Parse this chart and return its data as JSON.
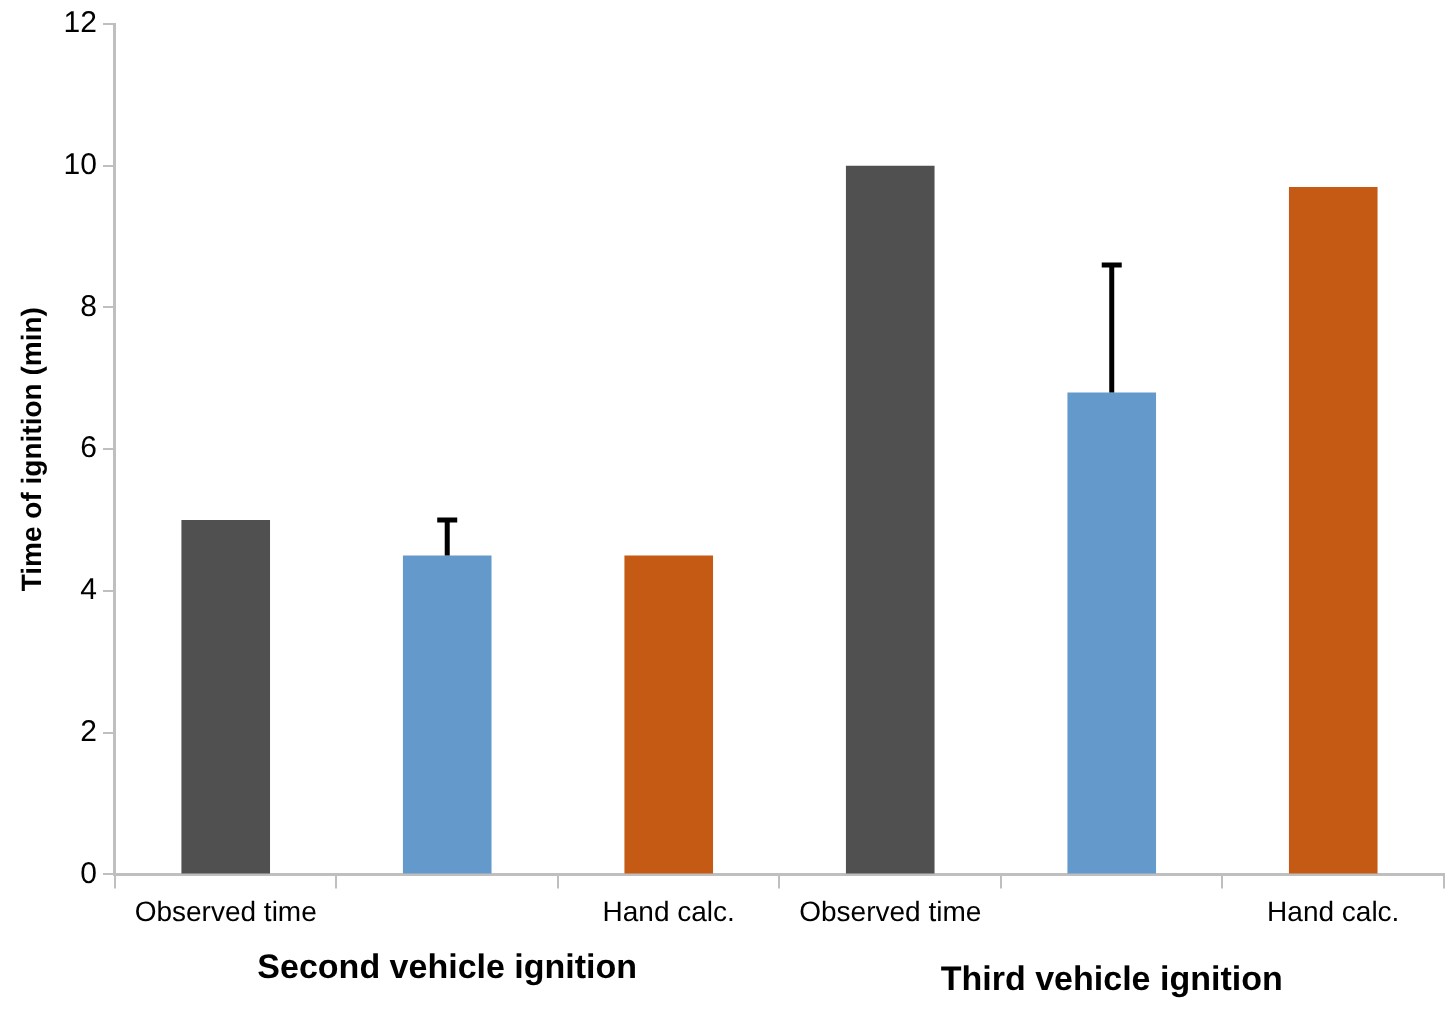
{
  "chart_data": {
    "type": "bar",
    "ylabel": "Time of ignition (min)",
    "categories": [
      "Observed time",
      null,
      "Hand calc.",
      "Observed time",
      null,
      "Hand calc."
    ],
    "values": [
      5,
      4.5,
      4.5,
      10,
      6.8,
      9.7
    ],
    "colors": [
      "#505050",
      "#6399cb",
      "#c45a14",
      "#505050",
      "#6399cb",
      "#c45a14"
    ],
    "errors": [
      null,
      [
        4.5,
        5
      ],
      null,
      null,
      [
        6.8,
        8.6
      ],
      null
    ],
    "ylim": [
      0,
      12
    ],
    "yticks": [
      0,
      2,
      4,
      6,
      8,
      10,
      12
    ],
    "grid": false,
    "legend": false,
    "annotations": [
      "Second vehicle ignition",
      "Third vehicle ignition"
    ]
  }
}
